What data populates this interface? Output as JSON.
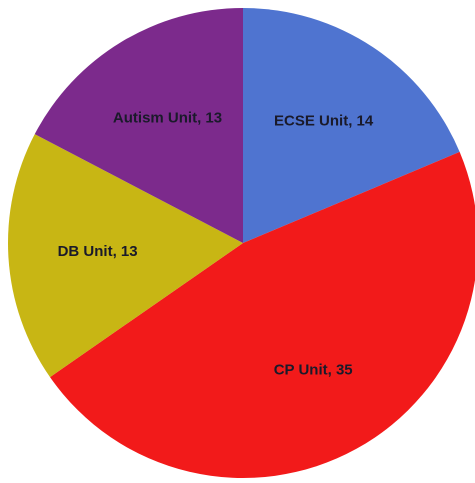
{
  "chart_data": {
    "type": "pie",
    "labels": [
      "ECSE Unit, 14",
      "CP Unit, 35",
      "DB Unit, 13",
      "Autism Unit, 13"
    ],
    "values": [
      14,
      35,
      13,
      13
    ],
    "colors": [
      "#4f74d0",
      "#f21a1a",
      "#c8b614",
      "#7c2a8c"
    ]
  }
}
